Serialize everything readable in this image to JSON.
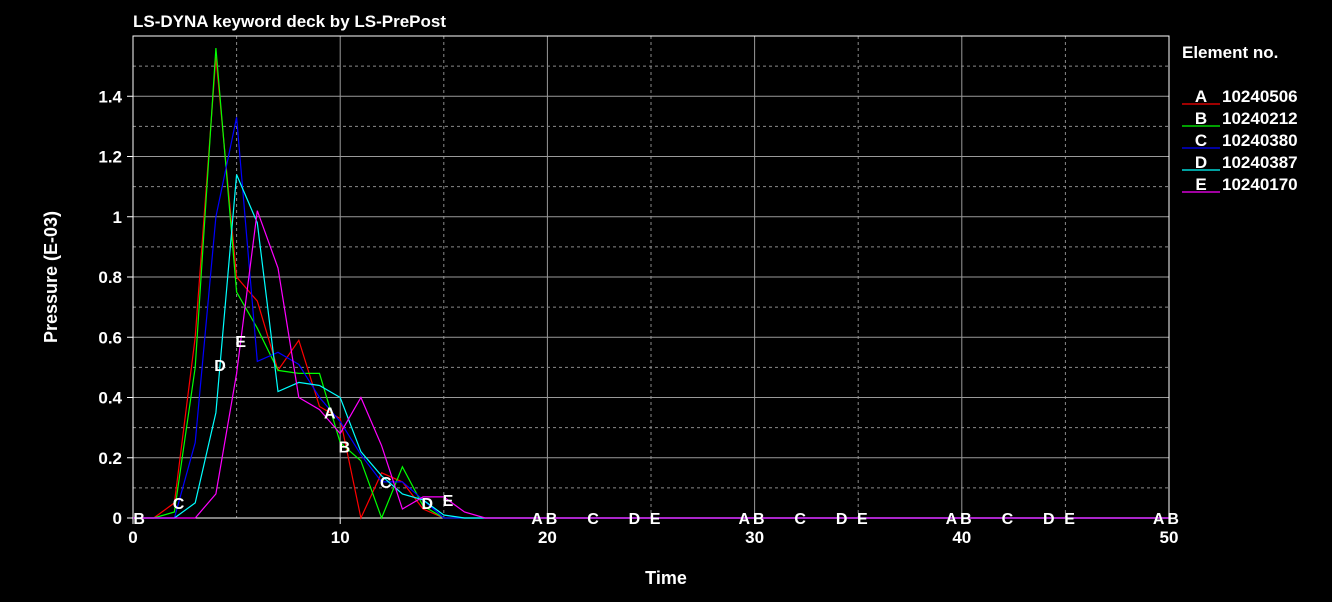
{
  "chart_data": {
    "type": "line",
    "title": "LS-DYNA keyword deck by LS-PrePost",
    "xlabel": "Time",
    "ylabel": "Pressure (E-03)",
    "xlim": [
      0,
      50
    ],
    "ylim": [
      0,
      1.6
    ],
    "xticks": [
      0,
      10,
      20,
      30,
      40,
      50
    ],
    "xtick_labels": [
      "0",
      "10",
      "20",
      "30",
      "40",
      "50"
    ],
    "yticks": [
      0,
      0.2,
      0.4,
      0.6,
      0.8,
      1,
      1.2,
      1.4
    ],
    "ytick_labels": [
      "0",
      "0.2",
      "0.4",
      "0.6",
      "0.8",
      "1",
      "1.2",
      "1.4"
    ],
    "grid": true,
    "legend": {
      "title": "Element no.",
      "position": "right"
    },
    "series": [
      {
        "letter": "A",
        "name": "10240506",
        "color": "#ff0000",
        "x": [
          0,
          1,
          2,
          3,
          4,
          5,
          6,
          7,
          8,
          9,
          10,
          11,
          12,
          13,
          14,
          15,
          16,
          17,
          50
        ],
        "y": [
          0,
          0,
          0.05,
          0.6,
          1.53,
          0.8,
          0.72,
          0.49,
          0.59,
          0.37,
          0.33,
          0.0,
          0.15,
          0.12,
          0.03,
          0.0,
          0,
          0,
          0
        ],
        "markers": [
          9.5,
          19.5,
          29.5,
          39.5,
          49.5
        ]
      },
      {
        "letter": "B",
        "name": "10240212",
        "color": "#00ff00",
        "x": [
          0,
          1,
          2,
          3,
          4,
          5,
          6,
          7,
          8,
          9,
          10,
          11,
          12,
          13,
          14,
          15,
          16,
          17,
          50
        ],
        "y": [
          0,
          0,
          0.02,
          0.5,
          1.56,
          0.75,
          0.63,
          0.49,
          0.48,
          0.48,
          0.25,
          0.19,
          0.0,
          0.17,
          0.04,
          0.0,
          0,
          0,
          0
        ],
        "markers": [
          0.3,
          10.2,
          20.2,
          30.2,
          40.2,
          50.2
        ]
      },
      {
        "letter": "C",
        "name": "10240380",
        "color": "#0000ff",
        "x": [
          0,
          1,
          2,
          3,
          4,
          5,
          6,
          7,
          8,
          9,
          10,
          11,
          12,
          13,
          14,
          15,
          16,
          17,
          50
        ],
        "y": [
          0,
          0,
          0.0,
          0.25,
          1.0,
          1.33,
          0.52,
          0.55,
          0.51,
          0.4,
          0.32,
          0.21,
          0.12,
          0.12,
          0.06,
          0.0,
          0,
          0,
          0
        ],
        "markers": [
          2.2,
          12.2,
          22.2,
          32.2,
          42.2
        ]
      },
      {
        "letter": "D",
        "name": "10240387",
        "color": "#00ffff",
        "x": [
          0,
          1,
          2,
          3,
          4,
          5,
          6,
          7,
          8,
          9,
          10,
          11,
          12,
          13,
          14,
          15,
          16,
          17,
          50
        ],
        "y": [
          0,
          0,
          0.0,
          0.05,
          0.35,
          1.14,
          0.98,
          0.42,
          0.45,
          0.44,
          0.4,
          0.22,
          0.14,
          0.08,
          0.06,
          0.01,
          0.0,
          0,
          0
        ],
        "markers": [
          4.2,
          14.2,
          24.2,
          34.2,
          44.2
        ]
      },
      {
        "letter": "E",
        "name": "10240170",
        "color": "#ff00ff",
        "x": [
          0,
          1,
          2,
          3,
          4,
          5,
          6,
          7,
          8,
          9,
          10,
          11,
          12,
          13,
          14,
          15,
          16,
          17,
          50
        ],
        "y": [
          0,
          0,
          0.0,
          0.0,
          0.08,
          0.48,
          1.02,
          0.83,
          0.4,
          0.36,
          0.28,
          0.4,
          0.24,
          0.03,
          0.07,
          0.07,
          0.02,
          0,
          0
        ],
        "markers": [
          5.2,
          15.2,
          25.2,
          35.2,
          45.2
        ]
      }
    ]
  }
}
